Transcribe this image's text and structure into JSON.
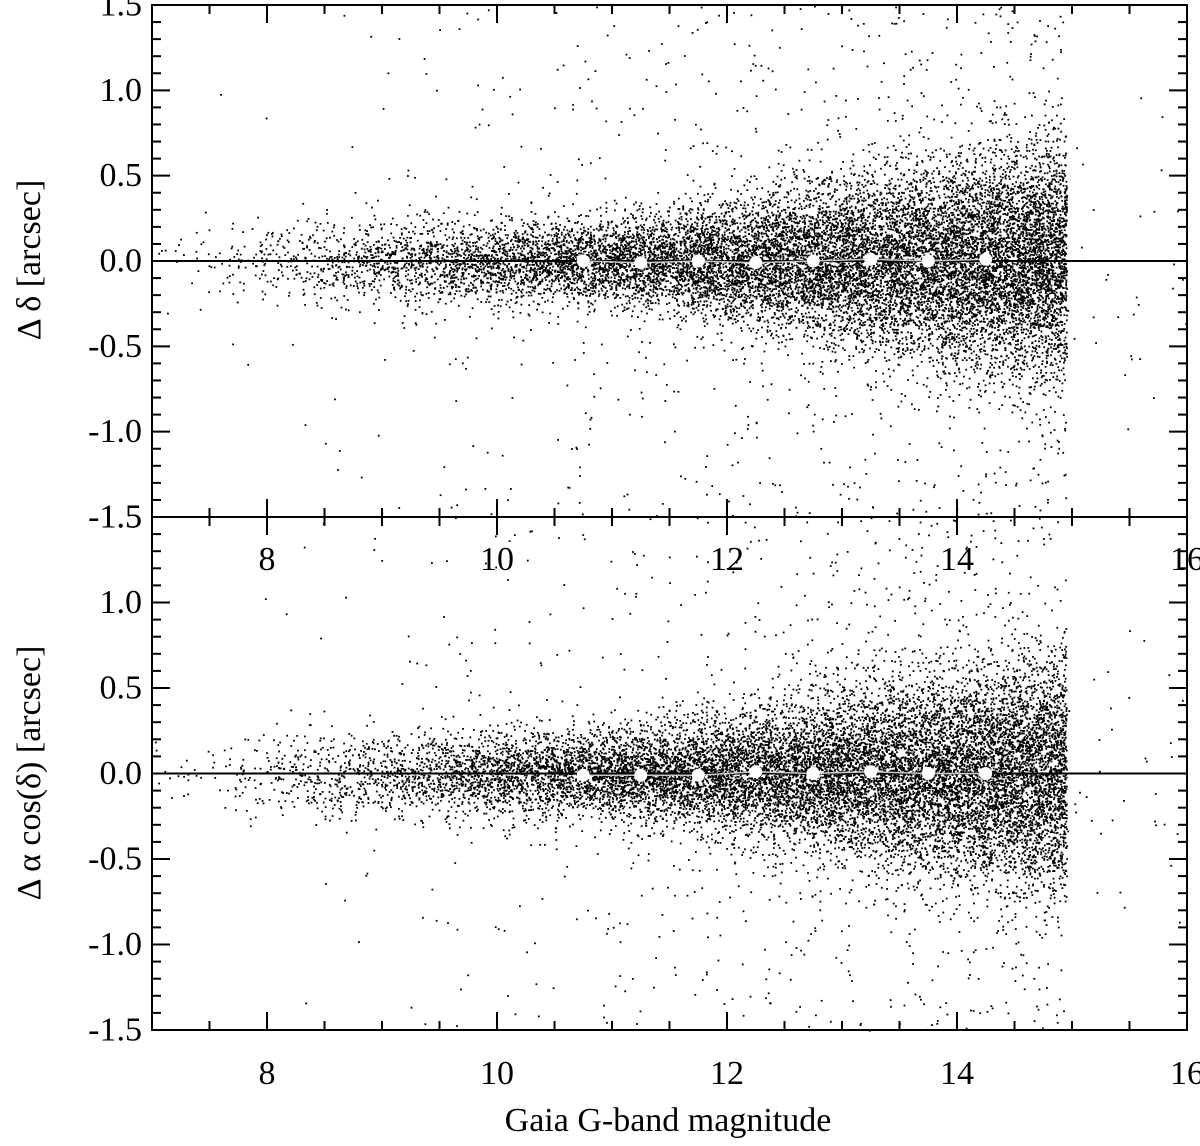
{
  "chart_data": [
    {
      "type": "scatter",
      "panel": "top",
      "ylabel": "Δ δ [arcsec]",
      "xlabel": "",
      "xlim": [
        7,
        16
      ],
      "ylim": [
        -1.5,
        1.5
      ],
      "x_ticks": [
        "8",
        "10",
        "12",
        "14",
        "16"
      ],
      "y_ticks": [
        "1.5",
        "1.0",
        "0.5",
        "0.0",
        "-0.5",
        "-1.0",
        "-1.5"
      ],
      "reference_line_y": 0.0,
      "binned_medians": {
        "x": [
          10.75,
          11.25,
          11.75,
          12.25,
          12.75,
          13.25,
          13.75,
          14.25
        ],
        "y": [
          0.0,
          -0.01,
          0.0,
          -0.01,
          0.0,
          0.01,
          0.0,
          0.01
        ]
      }
    },
    {
      "type": "scatter",
      "panel": "bottom",
      "ylabel": "Δ α cos(δ) [arcsec]",
      "xlabel": "Gaia G-band magnitude",
      "xlim": [
        7,
        16
      ],
      "ylim": [
        -1.5,
        1.5
      ],
      "x_ticks": [
        "8",
        "10",
        "12",
        "14",
        "16"
      ],
      "y_ticks": [
        "1.5",
        "1.0",
        "0.5",
        "0.0",
        "-0.5",
        "-1.0",
        "-1.5"
      ],
      "reference_line_y": 0.0,
      "binned_medians": {
        "x": [
          10.75,
          11.25,
          11.75,
          12.25,
          12.75,
          13.25,
          13.75,
          14.25
        ],
        "y": [
          -0.01,
          -0.01,
          -0.01,
          0.01,
          0.0,
          0.01,
          0.0,
          0.0
        ]
      }
    }
  ],
  "colors": {
    "points": "#000000",
    "medians": "#ffffff",
    "axes": "#000000",
    "background": "#ffffff"
  }
}
